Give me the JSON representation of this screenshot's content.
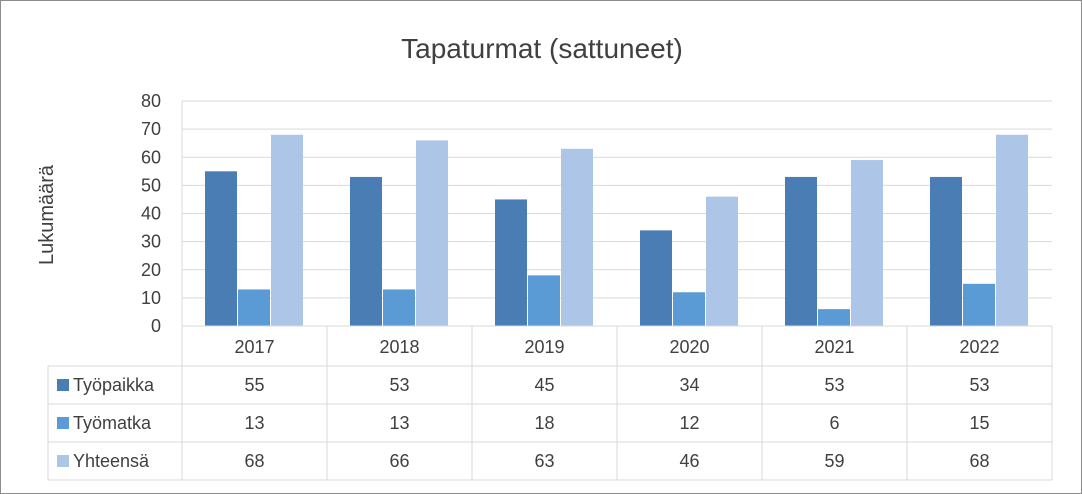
{
  "chart_data": {
    "type": "bar",
    "title": "Tapaturmat (sattuneet)",
    "xlabel": "",
    "ylabel": "Lukumäärä",
    "ylim": [
      0,
      80
    ],
    "yticks": [
      0,
      10,
      20,
      30,
      40,
      50,
      60,
      70,
      80
    ],
    "grid": true,
    "legend": "data-table",
    "categories": [
      "2017",
      "2018",
      "2019",
      "2020",
      "2021",
      "2022"
    ],
    "series": [
      {
        "name": "Työpaikka",
        "color": "#4a7db3",
        "values": [
          55,
          53,
          45,
          34,
          53,
          53
        ]
      },
      {
        "name": "Työmatka",
        "color": "#5b9bd5",
        "values": [
          13,
          13,
          18,
          12,
          6,
          15
        ]
      },
      {
        "name": "Yhteensä",
        "color": "#adc5e7",
        "values": [
          68,
          66,
          63,
          46,
          59,
          68
        ]
      }
    ]
  }
}
